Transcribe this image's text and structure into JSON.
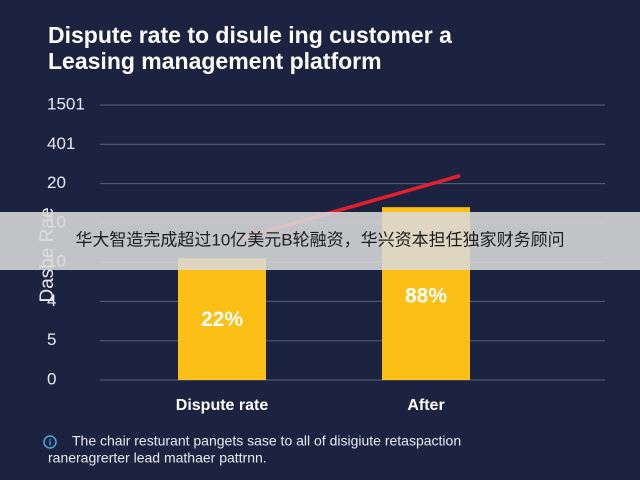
{
  "chart_data": {
    "type": "bar",
    "title": "Dispute rate to disule ing customer a",
    "subtitle": "Leasing management platform",
    "y_label": "Dasbe Rae",
    "categories": [
      "Dispute rate",
      "After"
    ],
    "values": [
      3.1,
      4.4
    ],
    "bar_texts": [
      "22%",
      "88%"
    ],
    "color": "#fbbf16",
    "trend": {
      "color": "#e3202a",
      "values": [
        3.6,
        5.2
      ]
    },
    "ylim": [
      0,
      7
    ],
    "yticks": [
      {
        "value": 0,
        "label": "0"
      },
      {
        "value": 1,
        "label": "5"
      },
      {
        "value": 2,
        "label": "4"
      },
      {
        "value": 3,
        "label": "10"
      },
      {
        "value": 4,
        "label": "10"
      },
      {
        "value": 5,
        "label": "20"
      },
      {
        "value": 6,
        "label": "401"
      },
      {
        "value": 7,
        "label": "1501"
      }
    ],
    "grid": true,
    "footnote": [
      "The chair resturant pangets sase to all of disigiute retaspaction",
      "raneragrerter lead mathaer pattrnn."
    ]
  },
  "banner": "华大智造完成超过10亿美元B轮融资，华兴资本担任独家财务顾问"
}
